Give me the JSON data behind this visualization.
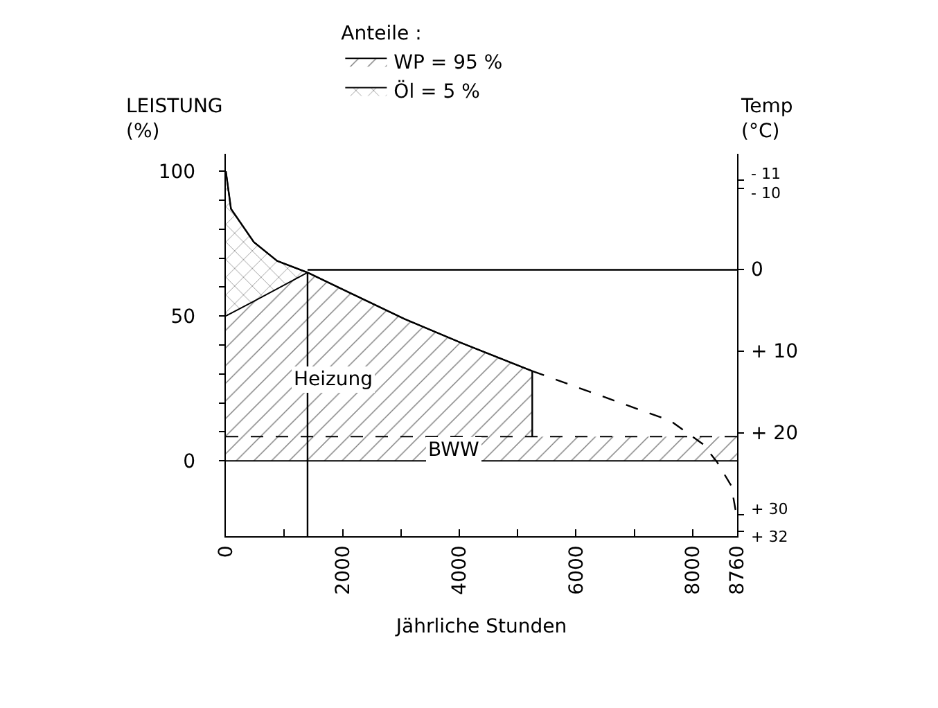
{
  "chart_data": {
    "type": "line",
    "xlabel": "Jährliche Stunden",
    "ylabel": "LEISTUNG\n(%)",
    "y2label": "Temp\n(°C)",
    "legend_title": "Anteile :",
    "legend": "top",
    "marker": "none",
    "xlim": [
      0,
      8760
    ],
    "xticks": [
      0,
      {
        "value": 1000,
        "label": null
      },
      2000,
      {
        "value": 3000,
        "label": null
      },
      4000,
      {
        "value": 5000,
        "label": null
      },
      6000,
      {
        "value": 7000,
        "label": null
      },
      8000,
      8760
    ],
    "ylim": [
      -26,
      106
    ],
    "yticks": [
      0,
      {
        "value": 10,
        "label": null
      },
      {
        "value": 20,
        "label": null
      },
      {
        "value": 30,
        "label": null
      },
      {
        "value": 40,
        "label": null
      },
      50,
      {
        "value": 60,
        "label": null
      },
      {
        "value": 70,
        "label": null
      },
      {
        "value": 80,
        "label": null
      },
      {
        "value": 90,
        "label": null
      },
      100
    ],
    "y2lim": [
      32.6,
      -14.2
    ],
    "y2ticks": [
      {
        "value": -11,
        "label": "- 11"
      },
      {
        "value": -10,
        "label": "- 10"
      },
      0,
      {
        "value": 10,
        "label": "+ 10"
      },
      {
        "value": 20,
        "label": "+ 20"
      },
      {
        "value": 30,
        "label": "+ 30"
      },
      {
        "value": 32,
        "label": "+ 32"
      }
    ],
    "series": [
      {
        "type": "area",
        "name": "Öl = 5 %",
        "color": "#000000",
        "x": [
          0,
          88,
          480,
          880,
          1400
        ],
        "values": [
          100,
          87,
          75.5,
          69,
          65
        ]
      },
      {
        "type": "area",
        "name": "WP = 95 %",
        "color": "#000000",
        "x": [
          0,
          480,
          880,
          1400,
          3060,
          4050,
          5250
        ],
        "values": [
          50,
          55.1,
          59.4,
          65,
          49,
          40.6,
          31
        ]
      },
      {
        "type": "area",
        "color": "#000000",
        "line_style": "dashed",
        "x": [
          0,
          8760
        ],
        "values": [
          8.4,
          8.4
        ]
      },
      {
        "color": "#000000",
        "line_style": "solid",
        "x": [
          0,
          88,
          480,
          880,
          1400,
          3060,
          4050,
          5250
        ],
        "values": [
          100,
          87,
          75.5,
          69,
          65,
          49,
          40.6,
          31
        ]
      },
      {
        "color": "#000000",
        "line_style": "dashed",
        "x": [
          5250,
          7620,
          8180,
          8420,
          8660,
          8760
        ],
        "values": [
          31,
          13.8,
          5.7,
          -0.5,
          -8.6,
          -20
        ]
      },
      {
        "color": "#000000",
        "line_style": "solid",
        "x": [
          1400,
          1400
        ],
        "values": [
          -26,
          65
        ]
      },
      {
        "color": "#000000",
        "line_style": "solid",
        "x": [
          5250,
          5250
        ],
        "values": [
          8.4,
          31
        ]
      },
      {
        "color": "#000000",
        "line_style": "solid",
        "axis": "y2",
        "x": [
          1400,
          8760
        ],
        "values": [
          0,
          0
        ]
      }
    ],
    "ref_lines": [
      {
        "axis": "y",
        "value": 0,
        "color": "#000000",
        "line_style": "solid"
      }
    ],
    "annotations": [
      "Heizung",
      "BWW"
    ]
  }
}
